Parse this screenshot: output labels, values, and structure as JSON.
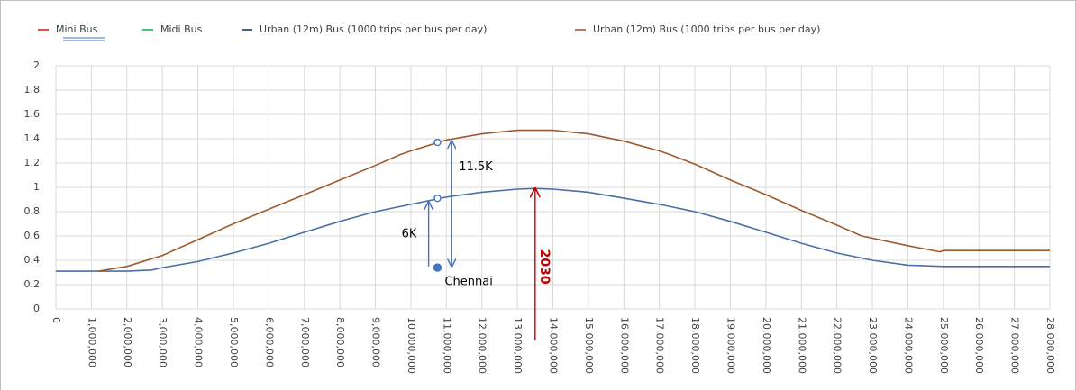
{
  "chart_data": {
    "type": "line",
    "xlim": [
      0,
      28000000
    ],
    "ylim": [
      0,
      2
    ],
    "yticks": [
      0,
      {
        "value": 0.2,
        "label": "0.2"
      },
      {
        "value": 0.4,
        "label": "0.4"
      },
      {
        "value": 0.6,
        "label": "0.6"
      },
      {
        "value": 0.8,
        "label": "0.8"
      },
      1,
      {
        "value": 1.2,
        "label": "1.2"
      },
      {
        "value": 1.4,
        "label": "1.4"
      },
      {
        "value": 1.6,
        "label": "1.6"
      },
      {
        "value": 1.8,
        "label": "1.8"
      },
      2
    ],
    "xticks": [
      0,
      {
        "value": 1000000,
        "label": "1,000,000"
      },
      {
        "value": 2000000,
        "label": "2,000,000"
      },
      {
        "value": 3000000,
        "label": "3,000,000"
      },
      {
        "value": 4000000,
        "label": "4,000,000"
      },
      {
        "value": 5000000,
        "label": "5,000,000"
      },
      {
        "value": 6000000,
        "label": "6,000,000"
      },
      {
        "value": 7000000,
        "label": "7,000,000"
      },
      {
        "value": 8000000,
        "label": "8,000,000"
      },
      {
        "value": 9000000,
        "label": "9,000,000"
      },
      {
        "value": 10000000,
        "label": "10,000,000"
      },
      {
        "value": 11000000,
        "label": "11,000,000"
      },
      {
        "value": 12000000,
        "label": "12,000,000"
      },
      {
        "value": 13000000,
        "label": "13,000,000"
      },
      {
        "value": 14000000,
        "label": "14,000,000"
      },
      {
        "value": 15000000,
        "label": "15,000,000"
      },
      {
        "value": 16000000,
        "label": "16,000,000"
      },
      {
        "value": 17000000,
        "label": "17,000,000"
      },
      {
        "value": 18000000,
        "label": "18,000,000"
      },
      {
        "value": 19000000,
        "label": "19,000,000"
      },
      {
        "value": 20000000,
        "label": "20,000,000"
      },
      {
        "value": 21000000,
        "label": "21,000,000"
      },
      {
        "value": 22000000,
        "label": "22,000,000"
      },
      {
        "value": 23000000,
        "label": "23,000,000"
      },
      {
        "value": 24000000,
        "label": "24,000,000"
      },
      {
        "value": 25000000,
        "label": "25,000,000"
      },
      {
        "value": 26000000,
        "label": "26,000,000"
      },
      {
        "value": 27000000,
        "label": "27,000,000"
      },
      {
        "value": 28000000,
        "label": "28,000,000"
      }
    ],
    "grid": true,
    "legend": "top",
    "series": [
      {
        "name": "Mini Bus",
        "color": "#e02020",
        "x": [
          0
        ],
        "values": [
          null
        ]
      },
      {
        "name": "Midi Bus",
        "color": "#20b050",
        "x": [
          0
        ],
        "values": [
          null
        ]
      },
      {
        "name": "Urban (12m) Bus (1000 trips per bus per day)",
        "color": "#1f3864",
        "line_color": "#4a6fa5",
        "x": [
          0,
          1000000,
          2000000,
          2700000,
          3000000,
          4000000,
          5000000,
          6000000,
          7000000,
          8000000,
          9000000,
          10000000,
          11000000,
          12000000,
          13000000,
          13500000,
          14000000,
          15000000,
          16000000,
          17000000,
          18000000,
          19000000,
          20000000,
          21000000,
          22000000,
          23000000,
          24000000,
          25000000,
          26000000,
          27000000,
          28000000
        ],
        "values": [
          0.31,
          0.31,
          0.31,
          0.32,
          0.34,
          0.39,
          0.46,
          0.54,
          0.63,
          0.72,
          0.8,
          0.86,
          0.92,
          0.96,
          0.985,
          0.99,
          0.985,
          0.96,
          0.91,
          0.86,
          0.8,
          0.72,
          0.63,
          0.54,
          0.46,
          0.4,
          0.36,
          0.35,
          0.35,
          0.35,
          0.35
        ]
      },
      {
        "name": "Urban (12m) Bus (1000 trips per bus per day)",
        "color": "#9c5b2f",
        "x": [
          1200000,
          2000000,
          3000000,
          4000000,
          5000000,
          6000000,
          7000000,
          8000000,
          9000000,
          9700000,
          10000000,
          11000000,
          12000000,
          13000000,
          14000000,
          15000000,
          16000000,
          17000000,
          17300000,
          18000000,
          19000000,
          20000000,
          21000000,
          22000000,
          22700000,
          24000000,
          24900000,
          25000000,
          26000000,
          27000000,
          28000000
        ],
        "values": [
          0.31,
          0.35,
          0.44,
          0.57,
          0.7,
          0.82,
          0.94,
          1.06,
          1.18,
          1.27,
          1.3,
          1.39,
          1.44,
          1.47,
          1.47,
          1.44,
          1.38,
          1.3,
          1.27,
          1.19,
          1.06,
          0.94,
          0.81,
          0.69,
          0.6,
          0.52,
          0.47,
          0.48,
          0.48,
          0.48,
          0.48
        ]
      }
    ],
    "points": [
      {
        "label": "Chennai",
        "x": 10750000,
        "y": 0.34,
        "color": "#4472c4",
        "filled": true
      },
      {
        "x": 10750000,
        "y": 0.91,
        "color": "#4472c4",
        "filled": false
      },
      {
        "x": 10750000,
        "y": 1.37,
        "color": "#4472c4",
        "filled": false
      }
    ],
    "arrows": [
      {
        "label": "6K",
        "x": 10500000,
        "from": 0.35,
        "to": 0.88,
        "color": "#4472c4",
        "double": false
      },
      {
        "label": "11.5K",
        "x": 11150000,
        "from": 0.35,
        "to": 1.38,
        "color": "#4472c4",
        "double": true
      },
      {
        "label": "2030",
        "x": 13500000,
        "from": 0,
        "to": 0.99,
        "color": "#c00000",
        "double": false
      }
    ]
  }
}
